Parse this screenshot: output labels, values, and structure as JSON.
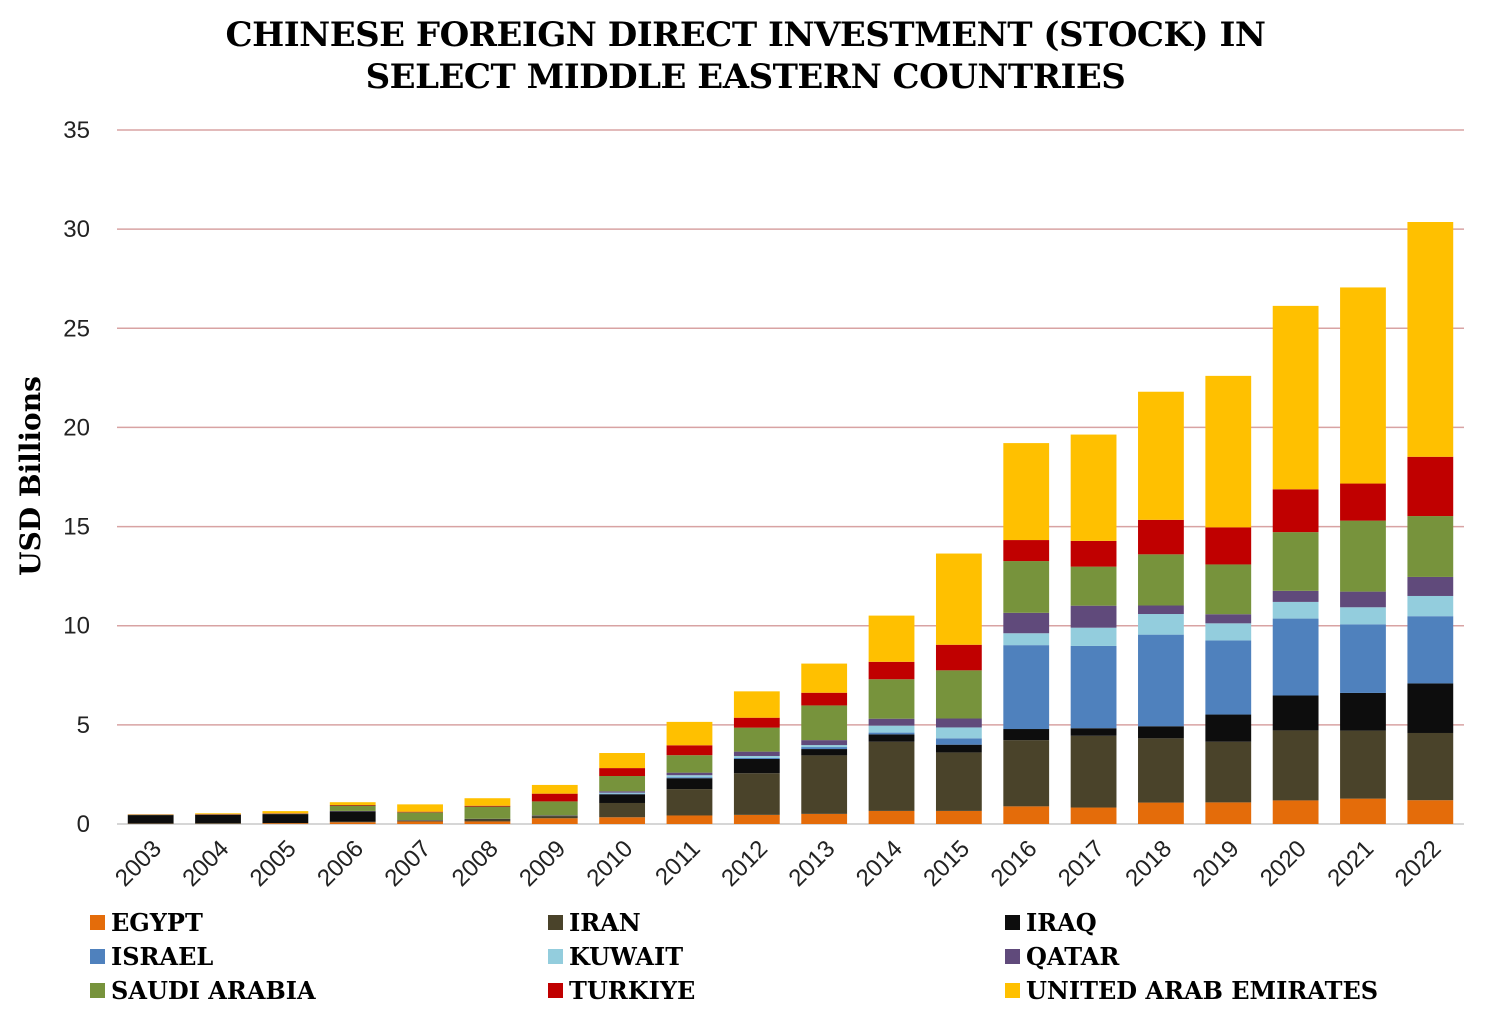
{
  "chart_data": {
    "type": "bar",
    "stacked": true,
    "title_lines": [
      "CHINESE FOREIGN DIRECT INVESTMENT (STOCK) IN",
      "SELECT MIDDLE EASTERN COUNTRIES"
    ],
    "xlabel": "",
    "ylabel": "USD Billions",
    "ylim": [
      0,
      35
    ],
    "yticks": [
      0,
      5,
      10,
      15,
      20,
      25,
      30,
      35
    ],
    "grid": true,
    "gridline_color": "#d8a3a3",
    "legend_position": "bottom",
    "categories": [
      "2003",
      "2004",
      "2005",
      "2006",
      "2007",
      "2008",
      "2009",
      "2010",
      "2011",
      "2012",
      "2013",
      "2014",
      "2015",
      "2016",
      "2017",
      "2018",
      "2019",
      "2020",
      "2021",
      "2022"
    ],
    "series": [
      {
        "name": "EGYPT",
        "color": "#e46c0a",
        "values": [
          0.01,
          0.01,
          0.04,
          0.09,
          0.13,
          0.13,
          0.29,
          0.34,
          0.43,
          0.46,
          0.51,
          0.66,
          0.66,
          0.89,
          0.83,
          1.08,
          1.09,
          1.19,
          1.28,
          1.2
        ]
      },
      {
        "name": "IRAN",
        "color": "#4a432a",
        "values": [
          0.02,
          0.03,
          0.01,
          0.03,
          0.03,
          0.1,
          0.1,
          0.72,
          1.33,
          2.1,
          2.95,
          3.49,
          2.95,
          3.34,
          3.62,
          3.24,
          3.06,
          3.53,
          3.43,
          3.39
        ]
      },
      {
        "name": "IRAQ",
        "color": "#0d0d0d",
        "values": [
          0.42,
          0.42,
          0.45,
          0.52,
          0.02,
          0.02,
          0.02,
          0.44,
          0.55,
          0.72,
          0.32,
          0.37,
          0.39,
          0.56,
          0.38,
          0.61,
          1.37,
          1.76,
          1.9,
          2.5
        ]
      },
      {
        "name": "ISRAEL",
        "color": "#4f81bd",
        "values": [
          0.0,
          0.0,
          0.0,
          0.0,
          0.0,
          0.0,
          0.0,
          0.03,
          0.05,
          0.05,
          0.1,
          0.09,
          0.32,
          4.23,
          4.15,
          4.62,
          3.74,
          3.88,
          3.46,
          3.39
        ]
      },
      {
        "name": "KUWAIT",
        "color": "#93cddd",
        "values": [
          0.0,
          0.0,
          0.0,
          0.0,
          0.0,
          0.0,
          0.0,
          0.05,
          0.1,
          0.1,
          0.1,
          0.35,
          0.55,
          0.6,
          0.92,
          1.04,
          0.86,
          0.84,
          0.86,
          1.02
        ]
      },
      {
        "name": "QATAR",
        "color": "#604a7b",
        "values": [
          0.0,
          0.0,
          0.0,
          0.02,
          0.01,
          0.01,
          0.02,
          0.07,
          0.13,
          0.22,
          0.25,
          0.35,
          0.45,
          1.03,
          1.11,
          0.43,
          0.46,
          0.56,
          0.79,
          0.96
        ]
      },
      {
        "name": "SAUDI ARABIA",
        "color": "#77933c",
        "values": [
          0.02,
          0.02,
          0.02,
          0.27,
          0.4,
          0.62,
          0.71,
          0.77,
          0.88,
          1.21,
          1.75,
          1.99,
          2.43,
          2.61,
          1.97,
          2.58,
          2.51,
          2.96,
          3.58,
          3.07
        ]
      },
      {
        "name": "TURKIYE",
        "color": "#c00000",
        "values": [
          0.01,
          0.02,
          0.02,
          0.03,
          0.03,
          0.04,
          0.39,
          0.4,
          0.5,
          0.5,
          0.64,
          0.88,
          1.29,
          1.06,
          1.3,
          1.74,
          1.87,
          2.16,
          1.87,
          2.99
        ]
      },
      {
        "name": "UNITED ARAB EMIRATES",
        "color": "#ffc000",
        "values": [
          0.01,
          0.04,
          0.11,
          0.14,
          0.37,
          0.38,
          0.44,
          0.76,
          1.18,
          1.33,
          1.47,
          2.33,
          4.6,
          4.89,
          5.36,
          6.46,
          7.64,
          9.25,
          9.89,
          11.84
        ]
      }
    ]
  }
}
